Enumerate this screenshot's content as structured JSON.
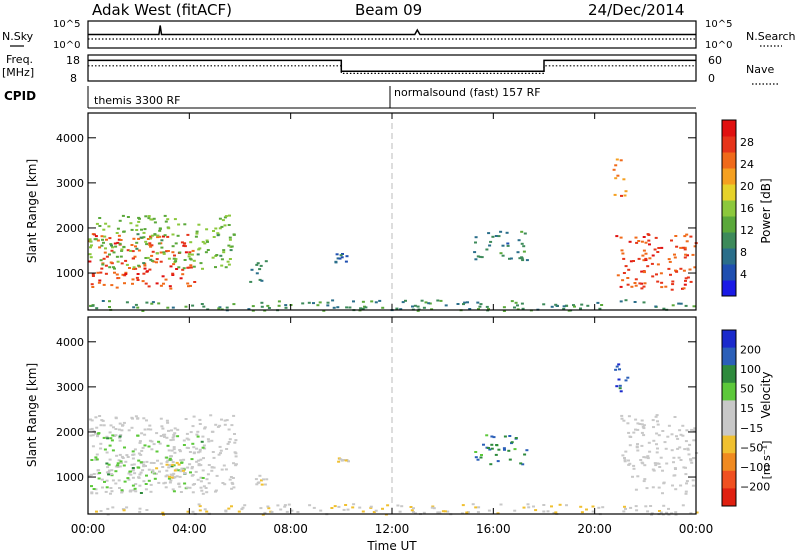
{
  "header": {
    "station": "Adak West (fitACF)",
    "beam": "Beam 09",
    "date": "24/Dec/2014"
  },
  "top_panels": {
    "nsky_label": "N.Sky",
    "nsky_ticks": [
      "10^5",
      "10^0"
    ],
    "nsearch_label": "N.Search",
    "nsearch_ticks": [
      "10^5",
      "10^0"
    ],
    "freq_label": "Freq.",
    "freq_unit": "[MHz]",
    "freq_ticks": [
      "18",
      "8"
    ],
    "nave_label": "Nave",
    "nave_ticks": [
      "60",
      "0"
    ],
    "cpid_label": "CPID",
    "cpid_segments": [
      "themis 3300 RF",
      "normalsound (fast) 157 RF"
    ]
  },
  "chart_data": [
    {
      "type": "line",
      "panel": "nsky-nsearch",
      "x_range_ut_hours": [
        0,
        24
      ],
      "series": [
        {
          "name": "N.Sky",
          "style": "solid",
          "x": [
            0,
            2.8,
            2.85,
            2.9,
            12.9,
            13.0,
            13.1,
            24
          ],
          "y": [
            3,
            3,
            5,
            3,
            3,
            4,
            3,
            3
          ]
        },
        {
          "name": "N.Search",
          "style": "dotted",
          "x": [
            0,
            24
          ],
          "y": [
            2,
            2
          ]
        }
      ]
    },
    {
      "type": "line",
      "panel": "freq-nave",
      "series": [
        {
          "name": "Freq. [MHz]",
          "style": "solid",
          "x": [
            0,
            10.0,
            10.0,
            18.0,
            18.0,
            24
          ],
          "y": [
            15.5,
            15.5,
            10.5,
            10.5,
            15.5,
            15.5
          ]
        },
        {
          "name": "Nave",
          "style": "dotted",
          "x": [
            0,
            10.0,
            10.0,
            18.0,
            18.0,
            24
          ],
          "y": [
            13,
            13,
            9.5,
            9.5,
            13,
            13
          ]
        }
      ]
    },
    {
      "type": "heatmap",
      "panel": "power",
      "xlabel": "Time UT",
      "ylabel": "Slant Range [km]",
      "x_ticks": [
        "00:00",
        "04:00",
        "08:00",
        "12:00",
        "16:00",
        "20:00",
        "00:00"
      ],
      "y_ticks": [
        1000,
        2000,
        3000,
        4000
      ],
      "ylim": [
        180,
        4550
      ],
      "colorbar": {
        "label": "Power [dB]",
        "ticks": [
          "4",
          "8",
          "12",
          "16",
          "20",
          "24",
          "28"
        ],
        "colors": [
          "#1a1ae6",
          "#1f4fb0",
          "#2a6e8a",
          "#3d8a5a",
          "#5aa83a",
          "#8cc83c",
          "#e6d22a",
          "#f5a020",
          "#f06a1a",
          "#e6341a",
          "#e01010"
        ]
      },
      "regions": [
        {
          "t": [
            0.0,
            4.2
          ],
          "r": [
            650,
            1900
          ],
          "dB": 28
        },
        {
          "t": [
            0.0,
            5.8
          ],
          "r": [
            1100,
            2300
          ],
          "dB": 14
        },
        {
          "t": [
            6.3,
            7.0
          ],
          "r": [
            800,
            1300
          ],
          "dB": 8
        },
        {
          "t": [
            9.7,
            10.3
          ],
          "r": [
            1250,
            1450
          ],
          "dB": 6
        },
        {
          "t": [
            15.2,
            17.3
          ],
          "r": [
            1300,
            1950
          ],
          "dB": 8
        },
        {
          "t": [
            20.8,
            24.0
          ],
          "r": [
            650,
            1900
          ],
          "dB": 28
        },
        {
          "t": [
            20.7,
            21.2
          ],
          "r": [
            2700,
            3550
          ],
          "dB": 24
        },
        {
          "t": [
            0.0,
            24.0
          ],
          "r": [
            180,
            420
          ],
          "dB": 10
        }
      ]
    },
    {
      "type": "heatmap",
      "panel": "velocity",
      "xlabel": "Time UT",
      "ylabel": "Slant Range [km]",
      "x_ticks": [
        "00:00",
        "04:00",
        "08:00",
        "12:00",
        "16:00",
        "20:00",
        "00:00"
      ],
      "y_ticks": [
        1000,
        2000,
        3000,
        4000
      ],
      "ylim": [
        180,
        4550
      ],
      "colorbar": {
        "label": "Velocity",
        "unit": "[m s⁻¹]",
        "ticks": [
          "200",
          "100",
          "50",
          "15",
          "−15",
          "−50",
          "−100",
          "−200"
        ],
        "colors": [
          "#1a2acc",
          "#2b5fb8",
          "#2e8a3c",
          "#5cc83a",
          "#c8c8c8",
          "#c8c8c8",
          "#f0c030",
          "#f08a20",
          "#f05020",
          "#e02010"
        ]
      },
      "regions": [
        {
          "t": [
            0.0,
            5.8
          ],
          "r": [
            650,
            2400
          ],
          "vel": 0
        },
        {
          "t": [
            0.0,
            4.5
          ],
          "r": [
            650,
            2000
          ],
          "vel": 60
        },
        {
          "t": [
            2.5,
            4.0
          ],
          "r": [
            1000,
            1400
          ],
          "vel": -60
        },
        {
          "t": [
            6.4,
            7.0
          ],
          "r": [
            850,
            1100
          ],
          "vel": -60
        },
        {
          "t": [
            9.8,
            10.3
          ],
          "r": [
            1300,
            1450
          ],
          "vel": -60
        },
        {
          "t": [
            15.2,
            17.3
          ],
          "r": [
            1300,
            1950
          ],
          "vel": 150
        },
        {
          "t": [
            20.7,
            21.3
          ],
          "r": [
            2800,
            3550
          ],
          "vel": 200
        },
        {
          "t": [
            21.0,
            24.0
          ],
          "r": [
            650,
            2400
          ],
          "vel": 0
        },
        {
          "t": [
            0.0,
            24.0
          ],
          "r": [
            180,
            420
          ],
          "vel": -40
        }
      ]
    }
  ]
}
